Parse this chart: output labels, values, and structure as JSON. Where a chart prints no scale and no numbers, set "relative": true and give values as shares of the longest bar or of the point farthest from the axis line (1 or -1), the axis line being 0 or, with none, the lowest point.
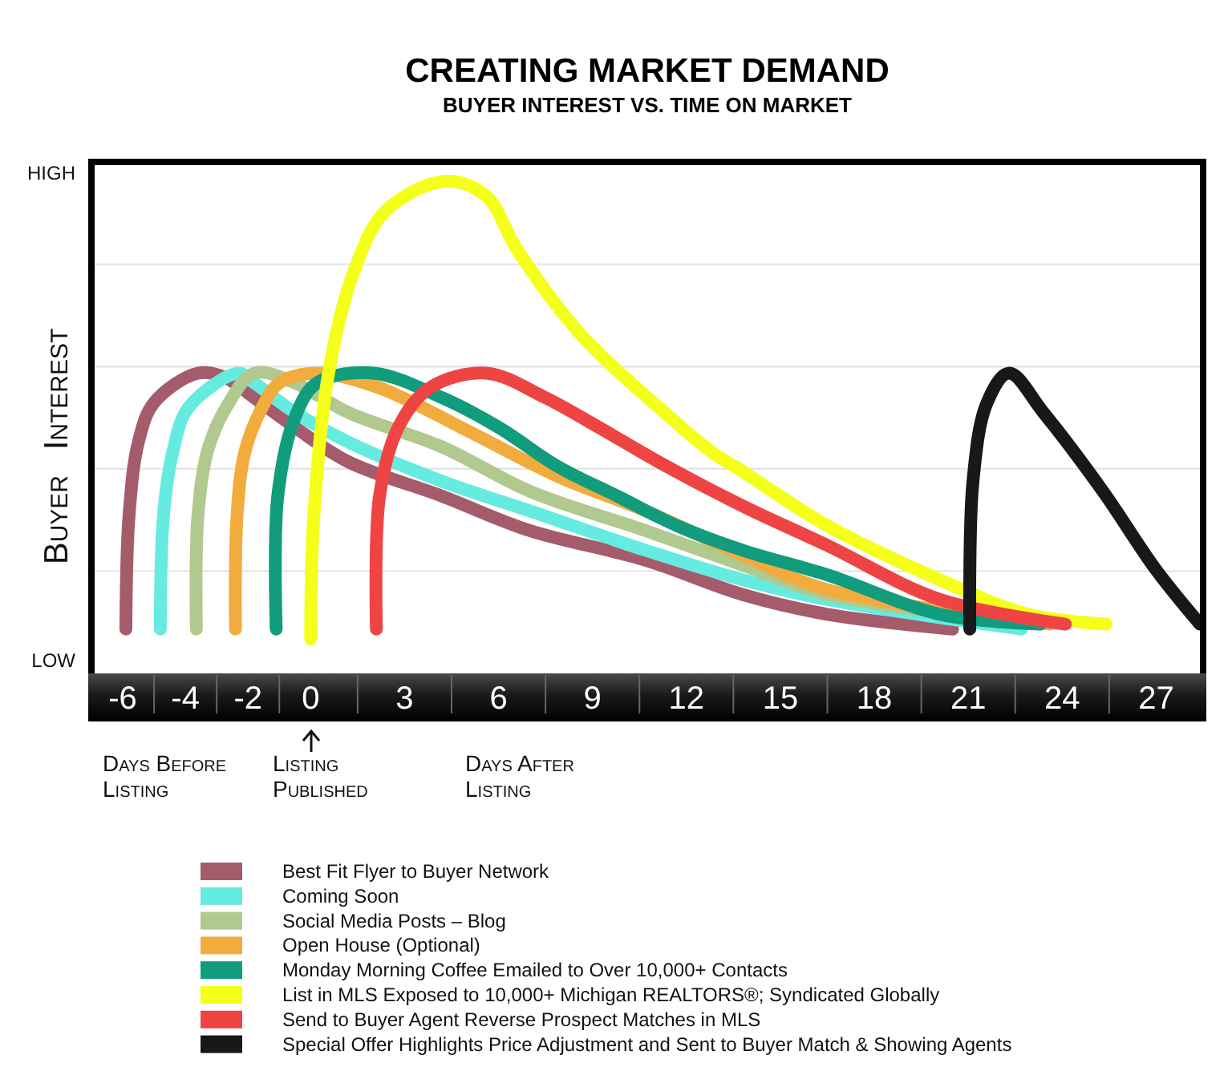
{
  "chart_data": {
    "type": "line",
    "title": "CREATING MARKET DEMAND",
    "subtitle": "BUYER INTEREST VS. TIME ON MARKET",
    "ylabel": "Buyer Interest",
    "relative": true,
    "xlim": [
      -7,
      28.5
    ],
    "xticks": [
      -6,
      -4,
      -2,
      0,
      3,
      6,
      9,
      12,
      15,
      18,
      21,
      24,
      27
    ],
    "grid": "y",
    "legend": "bottom",
    "line_style": "solid",
    "annotations": [
      "HIGH",
      "LOW",
      "Days Before Listing",
      "Listing Published",
      "Days After Listing"
    ],
    "series": [
      {
        "name": "Best Fit Flyer to Buyer Network",
        "color": "#a45c6c",
        "x": [
          -5.9,
          -5.8,
          -5.5,
          -5,
          -3.6,
          -2.7,
          -1.8,
          -0.5,
          1.2,
          4.2,
          7,
          10.7,
          13.8,
          16.5,
          20.5
        ],
        "values": [
          0.09,
          0.32,
          0.47,
          0.55,
          0.61,
          0.6,
          0.56,
          0.5,
          0.43,
          0.36,
          0.29,
          0.23,
          0.16,
          0.12,
          0.09
        ]
      },
      {
        "name": "Coming Soon",
        "color": "#66ebe0",
        "x": [
          -4.8,
          -4.7,
          -4.4,
          -3.9,
          -2.3,
          -1.8,
          -0.5,
          1.2,
          4.2,
          7,
          10.7,
          13.8,
          16.5,
          22.7
        ],
        "values": [
          0.09,
          0.32,
          0.45,
          0.54,
          0.61,
          0.59,
          0.53,
          0.47,
          0.39,
          0.33,
          0.25,
          0.19,
          0.15,
          0.09
        ]
      },
      {
        "name": "Social Media Posts – Blog",
        "color": "#b0c98f",
        "x": [
          -3.65,
          -3.6,
          -3.3,
          -2.7,
          -1.8,
          -0.5,
          1.2,
          4.2,
          7,
          10.7,
          13.8,
          16.5,
          23.3
        ],
        "values": [
          0.09,
          0.32,
          0.45,
          0.54,
          0.61,
          0.59,
          0.53,
          0.46,
          0.37,
          0.29,
          0.22,
          0.16,
          0.1
        ]
      },
      {
        "name": "Open House (Optional)",
        "color": "#f2ac3e",
        "x": [
          -2.4,
          -2.35,
          -2.1,
          -1.55,
          -1,
          0.2,
          2.2,
          5.1,
          7.9,
          10.7,
          13.8,
          16.5,
          23.6
        ],
        "values": [
          0.09,
          0.32,
          0.45,
          0.54,
          0.59,
          0.61,
          0.58,
          0.49,
          0.4,
          0.33,
          0.24,
          0.17,
          0.1
        ]
      },
      {
        "name": "Monday Morning Coffee Emailed to Over 10,000+ Contacts",
        "color": "#129c7e",
        "x": [
          -1.1,
          -1.05,
          -0.5,
          0.2,
          2,
          4.2,
          6,
          7.9,
          9.8,
          11.7,
          13.8,
          16.5,
          20.1,
          23.3
        ],
        "values": [
          0.09,
          0.36,
          0.52,
          0.59,
          0.61,
          0.56,
          0.5,
          0.42,
          0.36,
          0.3,
          0.25,
          0.2,
          0.12,
          0.1
        ]
      },
      {
        "name": "List in MLS Exposed to 10,000+ Michigan REALTORS®; Syndicated Globally",
        "color": "#f4ff1a",
        "x": [
          0,
          0.1,
          0.6,
          1.4,
          2.4,
          4.3,
          5.6,
          6.6,
          8.6,
          11.3,
          12.8,
          13.8,
          16.5,
          20.1,
          22.9,
          25.4
        ],
        "values": [
          0.07,
          0.32,
          0.62,
          0.82,
          0.94,
          1,
          0.97,
          0.86,
          0.69,
          0.53,
          0.45,
          0.41,
          0.3,
          0.19,
          0.12,
          0.1
        ]
      },
      {
        "name": "Send to Buyer Agent Reverse Prospect Matches in MLS",
        "color": "#ee4444",
        "x": [
          2.1,
          2.2,
          2.8,
          3.8,
          5.6,
          7.5,
          9.2,
          11.1,
          13.8,
          16.5,
          20.1,
          24.1
        ],
        "values": [
          0.09,
          0.36,
          0.5,
          0.58,
          0.61,
          0.56,
          0.5,
          0.43,
          0.34,
          0.26,
          0.15,
          0.1
        ]
      },
      {
        "name": "Special Offer Highlights Price Adjustment and Sent to Buyer Match & Showing Agents",
        "color": "#16181a",
        "x": [
          21.05,
          21.15,
          21.6,
          22.3,
          23.4,
          25.3,
          27,
          28.4
        ],
        "values": [
          0.09,
          0.39,
          0.55,
          0.61,
          0.53,
          0.37,
          0.21,
          0.1
        ]
      }
    ]
  }
}
